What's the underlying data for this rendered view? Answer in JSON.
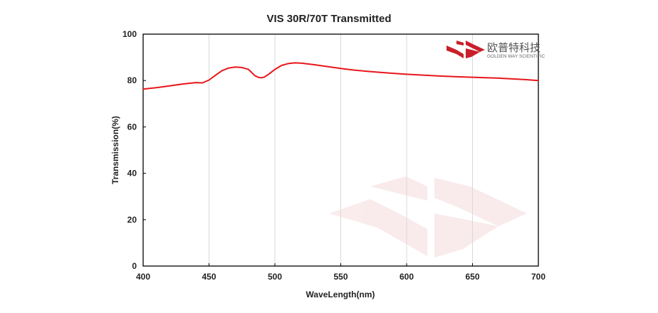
{
  "logo": {
    "name": "欧普特科技",
    "subtitle": "GOLDEN WAY SCIENTIFIC",
    "color": "#c8202a"
  },
  "chart_data": {
    "type": "line",
    "title": "VIS 30R/70T Transmitted",
    "xlabel": "WaveLength(nm)",
    "ylabel": "Transmission(%)",
    "xlim": [
      400,
      700
    ],
    "ylim": [
      0,
      100
    ],
    "xticks": [
      400,
      450,
      500,
      550,
      600,
      650,
      700
    ],
    "yticks": [
      0,
      20,
      40,
      60,
      80,
      100
    ],
    "grid": "vertical",
    "line_color": "#e8161b",
    "series": [
      {
        "x": [
          400,
          410,
          420,
          430,
          440,
          445,
          450,
          455,
          460,
          465,
          470,
          475,
          480,
          485,
          488,
          490,
          492,
          495,
          500,
          505,
          510,
          515,
          520,
          530,
          540,
          550,
          560,
          570,
          580,
          590,
          600,
          610,
          620,
          630,
          640,
          650,
          660,
          670,
          680,
          690,
          700
        ],
        "y": [
          76.3,
          76.9,
          77.7,
          78.5,
          79.1,
          79.0,
          80.2,
          82.3,
          84.3,
          85.4,
          85.8,
          85.6,
          84.8,
          82.0,
          81.3,
          81.2,
          81.5,
          82.6,
          84.8,
          86.5,
          87.3,
          87.6,
          87.5,
          86.8,
          86.0,
          85.2,
          84.5,
          84.0,
          83.5,
          83.1,
          82.7,
          82.4,
          82.1,
          81.8,
          81.6,
          81.4,
          81.2,
          81.0,
          80.7,
          80.4,
          80.0
        ]
      }
    ]
  }
}
